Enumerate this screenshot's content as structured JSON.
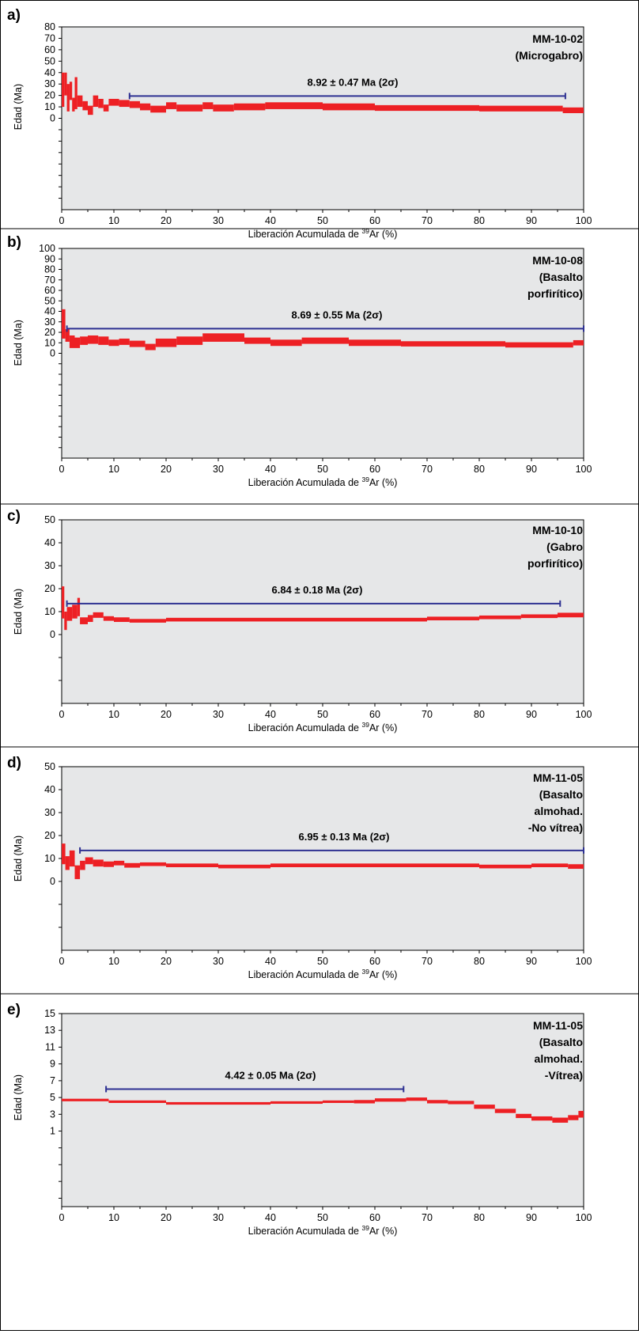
{
  "figure": {
    "xlabel_prefix": "Liberación Acumulada de ",
    "xlabel_superscript": "39",
    "xlabel_suffix": "Ar (%)",
    "ylabel": "Edad (Ma)",
    "colors": {
      "spectrum": "#ed2024",
      "plateau": "#2e3192",
      "plot_background": "#e6e7e8"
    }
  },
  "chart_data": [
    {
      "type": "line",
      "panel": "a)",
      "sample_lines": [
        "MM-10-02",
        "(Microgabro)"
      ],
      "plateau_label": "8.92 ± 0.47 Ma (2σ)",
      "plateau": {
        "x_start": 13,
        "x_end": 96.5,
        "age": 19.5
      },
      "xlim": [
        0,
        100
      ],
      "ylim": [
        -80,
        80
      ],
      "xticks": [
        0,
        10,
        20,
        30,
        40,
        50,
        60,
        70,
        80,
        90,
        100
      ],
      "yticks": [
        0,
        10,
        20,
        30,
        40,
        50,
        60,
        70,
        80
      ],
      "steps": [
        {
          "x0": 0,
          "x1": 0.5,
          "age": 25,
          "err": 15
        },
        {
          "x0": 0.5,
          "x1": 1,
          "age": 30,
          "err": 10
        },
        {
          "x0": 1,
          "x1": 1.5,
          "age": 18,
          "err": 12
        },
        {
          "x0": 1.5,
          "x1": 2,
          "age": 24,
          "err": 8
        },
        {
          "x0": 2,
          "x1": 2.5,
          "age": 12,
          "err": 6
        },
        {
          "x0": 2.5,
          "x1": 3,
          "age": 22,
          "err": 14
        },
        {
          "x0": 3,
          "x1": 4,
          "age": 15,
          "err": 5
        },
        {
          "x0": 4,
          "x1": 5,
          "age": 11,
          "err": 4
        },
        {
          "x0": 5,
          "x1": 6,
          "age": 7,
          "err": 4
        },
        {
          "x0": 6,
          "x1": 7,
          "age": 15,
          "err": 5
        },
        {
          "x0": 7,
          "x1": 8,
          "age": 13,
          "err": 4
        },
        {
          "x0": 8,
          "x1": 9,
          "age": 9,
          "err": 3
        },
        {
          "x0": 9,
          "x1": 11,
          "age": 14,
          "err": 3
        },
        {
          "x0": 11,
          "x1": 13,
          "age": 13,
          "err": 3
        },
        {
          "x0": 13,
          "x1": 15,
          "age": 12,
          "err": 3
        },
        {
          "x0": 15,
          "x1": 17,
          "age": 10,
          "err": 3
        },
        {
          "x0": 17,
          "x1": 20,
          "age": 8,
          "err": 3
        },
        {
          "x0": 20,
          "x1": 22,
          "age": 11,
          "err": 3
        },
        {
          "x0": 22,
          "x1": 27,
          "age": 9,
          "err": 3
        },
        {
          "x0": 27,
          "x1": 29,
          "age": 11,
          "err": 3
        },
        {
          "x0": 29,
          "x1": 33,
          "age": 9,
          "err": 3
        },
        {
          "x0": 33,
          "x1": 39,
          "age": 10,
          "err": 3
        },
        {
          "x0": 39,
          "x1": 50,
          "age": 11,
          "err": 3
        },
        {
          "x0": 50,
          "x1": 60,
          "age": 10,
          "err": 3
        },
        {
          "x0": 60,
          "x1": 70,
          "age": 9,
          "err": 2.5
        },
        {
          "x0": 70,
          "x1": 80,
          "age": 9,
          "err": 2.5
        },
        {
          "x0": 80,
          "x1": 90,
          "age": 8.5,
          "err": 2.5
        },
        {
          "x0": 90,
          "x1": 96,
          "age": 8.5,
          "err": 2.5
        },
        {
          "x0": 96,
          "x1": 100,
          "age": 7,
          "err": 2.5
        }
      ]
    },
    {
      "type": "line",
      "panel": "b)",
      "sample_lines": [
        "MM-10-08",
        "(Basalto",
        "porfirítico)"
      ],
      "plateau_label": "8.69 ± 0.55 Ma (2σ)",
      "plateau": {
        "x_start": 1,
        "x_end": 100,
        "age": 23.5
      },
      "xlim": [
        0,
        100
      ],
      "ylim": [
        -100,
        100
      ],
      "xticks": [
        0,
        10,
        20,
        30,
        40,
        50,
        60,
        70,
        80,
        90,
        100
      ],
      "yticks": [
        0,
        10,
        20,
        30,
        40,
        50,
        60,
        70,
        80,
        90,
        100
      ],
      "steps": [
        {
          "x0": 0,
          "x1": 0.7,
          "age": 28,
          "err": 14
        },
        {
          "x0": 0.7,
          "x1": 1.5,
          "age": 17,
          "err": 6
        },
        {
          "x0": 1.5,
          "x1": 2.5,
          "age": 11,
          "err": 6
        },
        {
          "x0": 2.5,
          "x1": 3.5,
          "age": 10,
          "err": 5
        },
        {
          "x0": 3.5,
          "x1": 5,
          "age": 12,
          "err": 4
        },
        {
          "x0": 5,
          "x1": 7,
          "age": 13,
          "err": 4
        },
        {
          "x0": 7,
          "x1": 9,
          "age": 12,
          "err": 4
        },
        {
          "x0": 9,
          "x1": 11,
          "age": 10,
          "err": 3
        },
        {
          "x0": 11,
          "x1": 13,
          "age": 11,
          "err": 3
        },
        {
          "x0": 13,
          "x1": 16,
          "age": 9,
          "err": 3
        },
        {
          "x0": 16,
          "x1": 18,
          "age": 6,
          "err": 3
        },
        {
          "x0": 18,
          "x1": 22,
          "age": 10,
          "err": 4
        },
        {
          "x0": 22,
          "x1": 27,
          "age": 12,
          "err": 4
        },
        {
          "x0": 27,
          "x1": 35,
          "age": 15,
          "err": 4
        },
        {
          "x0": 35,
          "x1": 40,
          "age": 12,
          "err": 3
        },
        {
          "x0": 40,
          "x1": 46,
          "age": 10,
          "err": 3
        },
        {
          "x0": 46,
          "x1": 55,
          "age": 12,
          "err": 3
        },
        {
          "x0": 55,
          "x1": 65,
          "age": 10,
          "err": 3
        },
        {
          "x0": 65,
          "x1": 75,
          "age": 9,
          "err": 2.5
        },
        {
          "x0": 75,
          "x1": 85,
          "age": 9,
          "err": 2.5
        },
        {
          "x0": 85,
          "x1": 98,
          "age": 8,
          "err": 2.5
        },
        {
          "x0": 98,
          "x1": 100,
          "age": 10,
          "err": 2.5
        }
      ]
    },
    {
      "type": "line",
      "panel": "c)",
      "sample_lines": [
        "MM-10-10",
        "(Gabro",
        "porfirítico)"
      ],
      "plateau_label": "6.84 ± 0.18 Ma (2σ)",
      "plateau": {
        "x_start": 1,
        "x_end": 95.5,
        "age": 13.5
      },
      "xlim": [
        0,
        100
      ],
      "ylim": [
        -30,
        50
      ],
      "xticks": [
        0,
        10,
        20,
        30,
        40,
        50,
        60,
        70,
        80,
        90,
        100
      ],
      "yticks": [
        0,
        10,
        20,
        30,
        40,
        50
      ],
      "steps": [
        {
          "x0": 0,
          "x1": 0.5,
          "age": 14,
          "err": 7
        },
        {
          "x0": 0.5,
          "x1": 1,
          "age": 6,
          "err": 4
        },
        {
          "x0": 1,
          "x1": 2,
          "age": 9,
          "err": 3
        },
        {
          "x0": 2,
          "x1": 3,
          "age": 10,
          "err": 3
        },
        {
          "x0": 3,
          "x1": 3.5,
          "age": 12,
          "err": 4
        },
        {
          "x0": 3.5,
          "x1": 5,
          "age": 6,
          "err": 1.5
        },
        {
          "x0": 5,
          "x1": 6,
          "age": 7,
          "err": 1.5
        },
        {
          "x0": 6,
          "x1": 8,
          "age": 8.5,
          "err": 1.2
        },
        {
          "x0": 8,
          "x1": 10,
          "age": 7,
          "err": 1
        },
        {
          "x0": 10,
          "x1": 13,
          "age": 6.5,
          "err": 1
        },
        {
          "x0": 13,
          "x1": 20,
          "age": 6,
          "err": 0.8
        },
        {
          "x0": 20,
          "x1": 30,
          "age": 6.5,
          "err": 0.8
        },
        {
          "x0": 30,
          "x1": 40,
          "age": 6.5,
          "err": 0.8
        },
        {
          "x0": 40,
          "x1": 50,
          "age": 6.5,
          "err": 0.8
        },
        {
          "x0": 50,
          "x1": 60,
          "age": 6.5,
          "err": 0.8
        },
        {
          "x0": 60,
          "x1": 70,
          "age": 6.5,
          "err": 0.8
        },
        {
          "x0": 70,
          "x1": 80,
          "age": 7,
          "err": 0.8
        },
        {
          "x0": 80,
          "x1": 88,
          "age": 7.5,
          "err": 0.8
        },
        {
          "x0": 88,
          "x1": 95,
          "age": 8,
          "err": 0.8
        },
        {
          "x0": 95,
          "x1": 100,
          "age": 8.5,
          "err": 1
        }
      ]
    },
    {
      "type": "line",
      "panel": "d)",
      "sample_lines": [
        "MM-11-05",
        "(Basalto",
        "almohad.",
        "-No vítrea)"
      ],
      "plateau_label": "6.95 ± 0.13 Ma (2σ)",
      "plateau": {
        "x_start": 3.5,
        "x_end": 100,
        "age": 13.5
      },
      "xlim": [
        0,
        100
      ],
      "ylim": [
        -30,
        50
      ],
      "xticks": [
        0,
        10,
        20,
        30,
        40,
        50,
        60,
        70,
        80,
        90,
        100
      ],
      "yticks": [
        0,
        10,
        20,
        30,
        40,
        50
      ],
      "steps": [
        {
          "x0": 0,
          "x1": 0.7,
          "age": 12,
          "err": 4.5
        },
        {
          "x0": 0.7,
          "x1": 1.5,
          "age": 8,
          "err": 3
        },
        {
          "x0": 1.5,
          "x1": 2.5,
          "age": 10,
          "err": 3.5
        },
        {
          "x0": 2.5,
          "x1": 3.5,
          "age": 4,
          "err": 3
        },
        {
          "x0": 3.5,
          "x1": 4.5,
          "age": 7,
          "err": 2
        },
        {
          "x0": 4.5,
          "x1": 6,
          "age": 9,
          "err": 1.5
        },
        {
          "x0": 6,
          "x1": 8,
          "age": 8,
          "err": 1.5
        },
        {
          "x0": 8,
          "x1": 10,
          "age": 7.5,
          "err": 1.2
        },
        {
          "x0": 10,
          "x1": 12,
          "age": 8,
          "err": 1
        },
        {
          "x0": 12,
          "x1": 15,
          "age": 7,
          "err": 1
        },
        {
          "x0": 15,
          "x1": 20,
          "age": 7.5,
          "err": 0.8
        },
        {
          "x0": 20,
          "x1": 30,
          "age": 7,
          "err": 0.8
        },
        {
          "x0": 30,
          "x1": 40,
          "age": 6.5,
          "err": 0.8
        },
        {
          "x0": 40,
          "x1": 50,
          "age": 7,
          "err": 0.8
        },
        {
          "x0": 50,
          "x1": 60,
          "age": 7,
          "err": 0.8
        },
        {
          "x0": 60,
          "x1": 70,
          "age": 7,
          "err": 0.8
        },
        {
          "x0": 70,
          "x1": 80,
          "age": 7,
          "err": 0.8
        },
        {
          "x0": 80,
          "x1": 90,
          "age": 6.5,
          "err": 0.8
        },
        {
          "x0": 90,
          "x1": 97,
          "age": 7,
          "err": 0.8
        },
        {
          "x0": 97,
          "x1": 100,
          "age": 6.5,
          "err": 1
        }
      ]
    },
    {
      "type": "line",
      "panel": "e)",
      "sample_lines": [
        "MM-11-05",
        "(Basalto",
        "almohad.",
        "-Vítrea)"
      ],
      "plateau_label": "4.42 ± 0.05 Ma (2σ)",
      "plateau": {
        "x_start": 8.5,
        "x_end": 65.5,
        "age": 6
      },
      "xlim": [
        0,
        100
      ],
      "ylim": [
        -8,
        15
      ],
      "xticks": [
        0,
        10,
        20,
        30,
        40,
        50,
        60,
        70,
        80,
        90,
        100
      ],
      "yticks": [
        1,
        3,
        5,
        7,
        9,
        11,
        13,
        15
      ],
      "steps": [
        {
          "x0": 0,
          "x1": 9,
          "age": 4.7,
          "err": 0.15
        },
        {
          "x0": 9,
          "x1": 20,
          "age": 4.5,
          "err": 0.15
        },
        {
          "x0": 20,
          "x1": 30,
          "age": 4.3,
          "err": 0.15
        },
        {
          "x0": 30,
          "x1": 40,
          "age": 4.3,
          "err": 0.15
        },
        {
          "x0": 40,
          "x1": 50,
          "age": 4.4,
          "err": 0.15
        },
        {
          "x0": 50,
          "x1": 56,
          "age": 4.5,
          "err": 0.15
        },
        {
          "x0": 56,
          "x1": 60,
          "age": 4.5,
          "err": 0.2
        },
        {
          "x0": 60,
          "x1": 66,
          "age": 4.7,
          "err": 0.2
        },
        {
          "x0": 66,
          "x1": 70,
          "age": 4.8,
          "err": 0.2
        },
        {
          "x0": 70,
          "x1": 74,
          "age": 4.5,
          "err": 0.2
        },
        {
          "x0": 74,
          "x1": 79,
          "age": 4.4,
          "err": 0.2
        },
        {
          "x0": 79,
          "x1": 83,
          "age": 3.9,
          "err": 0.25
        },
        {
          "x0": 83,
          "x1": 87,
          "age": 3.4,
          "err": 0.25
        },
        {
          "x0": 87,
          "x1": 90,
          "age": 2.8,
          "err": 0.25
        },
        {
          "x0": 90,
          "x1": 94,
          "age": 2.5,
          "err": 0.25
        },
        {
          "x0": 94,
          "x1": 97,
          "age": 2.3,
          "err": 0.3
        },
        {
          "x0": 97,
          "x1": 99,
          "age": 2.6,
          "err": 0.3
        },
        {
          "x0": 99,
          "x1": 100,
          "age": 3.0,
          "err": 0.4
        }
      ]
    }
  ]
}
